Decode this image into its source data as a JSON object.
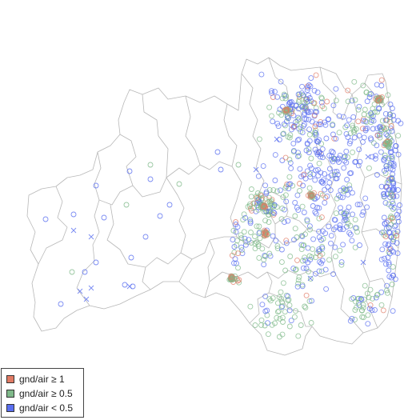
{
  "colors": {
    "high": "#e07a64",
    "mid": "#7fb98a",
    "low": "#5a6ff0",
    "boundary": "#b8b8b8"
  },
  "legend": {
    "items": [
      {
        "key": "high",
        "label": "gnd/air ≥ 1"
      },
      {
        "key": "mid",
        "label": "gnd/air ≥ 0.5"
      },
      {
        "key": "low",
        "label": "gnd/air < 0.5"
      }
    ]
  }
}
